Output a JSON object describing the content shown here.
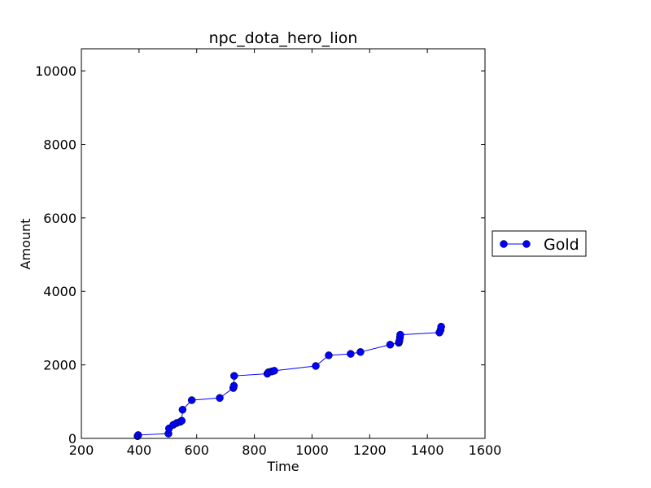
{
  "chart_data": {
    "type": "line",
    "title": "npc_dota_hero_lion",
    "xlabel": "Time",
    "ylabel": "Amount",
    "xlim": [
      200,
      1600
    ],
    "ylim": [
      0,
      10600
    ],
    "xticks": [
      200,
      400,
      600,
      800,
      1000,
      1200,
      1400,
      1600
    ],
    "yticks": [
      0,
      2000,
      4000,
      6000,
      8000,
      10000
    ],
    "legend": "right",
    "grid": false,
    "series": [
      {
        "name": "Gold",
        "color": "#0000ff",
        "marker": "circle",
        "x": [
          395,
          397,
          502,
          504,
          519,
          531,
          543,
          548,
          551,
          583,
          680,
          727,
          729,
          730,
          845,
          849,
          860,
          869,
          1013,
          1058,
          1134,
          1168,
          1271,
          1301,
          1303,
          1305,
          1306,
          1442,
          1446,
          1448
        ],
        "y": [
          60,
          90,
          130,
          270,
          370,
          420,
          450,
          480,
          780,
          1040,
          1100,
          1370,
          1430,
          1700,
          1760,
          1800,
          1820,
          1840,
          1970,
          2260,
          2300,
          2350,
          2550,
          2600,
          2650,
          2740,
          2820,
          2880,
          2950,
          3040
        ]
      }
    ]
  }
}
